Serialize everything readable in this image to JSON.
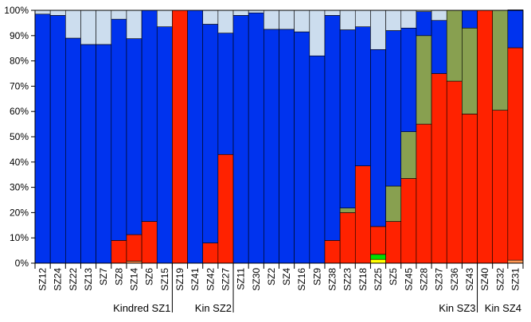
{
  "chart_data": {
    "type": "bar",
    "stacked": true,
    "percent": true,
    "ylim": [
      0,
      100
    ],
    "y_ticks": [
      "0%",
      "10%",
      "20%",
      "30%",
      "40%",
      "50%",
      "60%",
      "70%",
      "80%",
      "90%",
      "100%"
    ],
    "y_tick_values": [
      0,
      10,
      20,
      30,
      40,
      50,
      60,
      70,
      80,
      90,
      100
    ],
    "categories": [
      "SZ12",
      "SZ24",
      "SZ22",
      "SZ13",
      "SZ7",
      "SZ8",
      "SZ14",
      "SZ6",
      "SZ15",
      "SZ19",
      "SZ41",
      "SZ42",
      "SZ27",
      "SZ11",
      "SZ30",
      "SZ2",
      "SZ4",
      "SZ16",
      "SZ9",
      "SZ38",
      "SZ23",
      "SZ18",
      "SZ25",
      "SZ5",
      "SZ45",
      "SZ28",
      "SZ37",
      "SZ36",
      "SZ43",
      "SZ40",
      "SZ32",
      "SZ31"
    ],
    "groups": [
      {
        "label": "Kindred SZ1",
        "start": 0,
        "end": 8
      },
      {
        "label": "Kin SZ2",
        "start": 9,
        "end": 12
      },
      {
        "label": "Kin SZ3",
        "start": 13,
        "end": 28
      },
      {
        "label": "Kin SZ4",
        "start": 29,
        "end": 31
      }
    ],
    "series": [
      {
        "color": "#ffff00",
        "values": [
          0,
          0,
          0,
          0,
          0,
          0,
          0,
          0,
          0,
          0,
          0,
          0,
          0,
          0,
          0,
          0,
          0,
          0,
          0,
          0,
          0,
          0,
          1.5,
          0,
          0,
          0,
          0,
          0,
          0,
          0,
          0,
          0
        ]
      },
      {
        "color": "#00dd00",
        "values": [
          0,
          0,
          0,
          0,
          0,
          0,
          0,
          0,
          0,
          0,
          0,
          0,
          0,
          0,
          0,
          0,
          0,
          0,
          0,
          0,
          0,
          0,
          2,
          0,
          0,
          0,
          0,
          0,
          0,
          0,
          0,
          0
        ]
      },
      {
        "color": "#ff9955",
        "values": [
          0,
          0,
          0,
          0,
          0,
          0,
          0.8,
          0,
          0,
          0,
          0,
          0,
          0,
          0,
          0,
          0,
          0,
          0,
          0,
          0,
          0,
          0,
          0,
          0,
          0,
          0,
          0,
          0,
          0,
          0,
          0,
          1.2
        ]
      },
      {
        "color": "#ff2200",
        "values": [
          0,
          0,
          0,
          0,
          0,
          9,
          10.5,
          16.5,
          0,
          100,
          0,
          8,
          43,
          0,
          0,
          0,
          0,
          0,
          0,
          9,
          20,
          38.5,
          11,
          16.5,
          33.5,
          55,
          75,
          72,
          59,
          100,
          60.5,
          84
        ]
      },
      {
        "color": "#88a050",
        "values": [
          0,
          0,
          0,
          0,
          0,
          0,
          0,
          0,
          0,
          0,
          0,
          0,
          0,
          0,
          0,
          0,
          0,
          0,
          0,
          0,
          1.8,
          0,
          0,
          14,
          18.5,
          35,
          0,
          28,
          34,
          0,
          39.5,
          0
        ]
      },
      {
        "color": "#0033ee",
        "values": [
          98.5,
          98,
          89,
          86.5,
          86.5,
          87.5,
          77.5,
          83.5,
          93.5,
          0,
          100,
          86.5,
          48,
          98,
          99,
          92.5,
          92.5,
          91.5,
          82,
          89,
          70.5,
          55,
          70,
          61.5,
          41,
          9.5,
          21,
          0,
          7,
          0,
          0,
          15
        ]
      },
      {
        "color": "#ccddee",
        "values": [
          1.5,
          2,
          11,
          13.5,
          13.5,
          3.5,
          11.2,
          0,
          6.5,
          0,
          0,
          5.5,
          9,
          2,
          1,
          7.5,
          7.5,
          8.5,
          18,
          2,
          7.7,
          6.5,
          15.5,
          8,
          7,
          0.5,
          4,
          0,
          0,
          0,
          0,
          0
        ]
      }
    ]
  }
}
